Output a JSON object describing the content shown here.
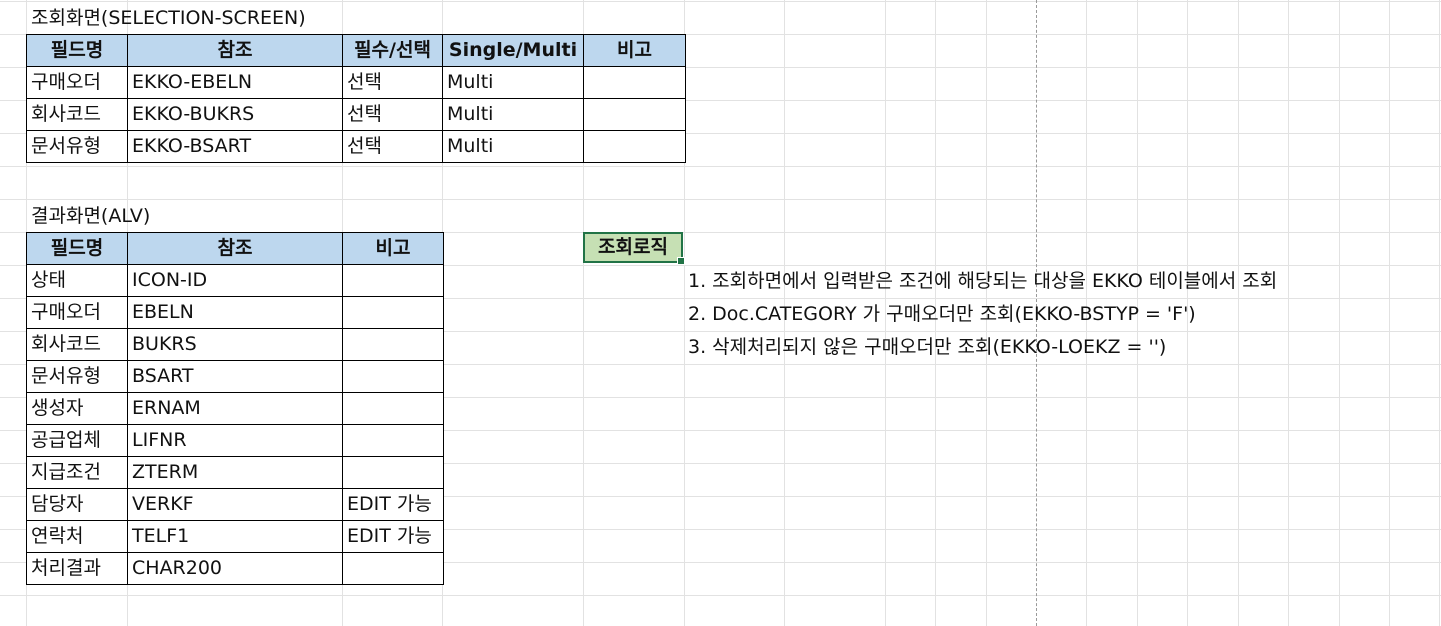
{
  "selection": {
    "title": "조회화면(SELECTION-SCREEN)",
    "headers": [
      "필드명",
      "참조",
      "필수/선택",
      "Single/Multi",
      "비고"
    ],
    "rows": [
      [
        "구매오더",
        "EKKO-EBELN",
        "선택",
        "Multi",
        ""
      ],
      [
        "회사코드",
        "EKKO-BUKRS",
        "선택",
        "Multi",
        ""
      ],
      [
        "문서유형",
        "EKKO-BSART",
        "선택",
        "Multi",
        ""
      ]
    ]
  },
  "alv": {
    "title": "결과화면(ALV)",
    "headers": [
      "필드명",
      "참조",
      "비고"
    ],
    "rows": [
      [
        "상태",
        "ICON-ID",
        ""
      ],
      [
        "구매오더",
        "EBELN",
        ""
      ],
      [
        "회사코드",
        "BUKRS",
        ""
      ],
      [
        "문서유형",
        "BSART",
        ""
      ],
      [
        "생성자",
        "ERNAM",
        ""
      ],
      [
        "공급업체",
        "LIFNR",
        ""
      ],
      [
        "지급조건",
        "ZTERM",
        ""
      ],
      [
        "담당자",
        "VERKF",
        "EDIT 가능"
      ],
      [
        "연락처",
        "TELF1",
        "EDIT 가능"
      ],
      [
        "처리결과",
        "CHAR200",
        ""
      ]
    ]
  },
  "logic": {
    "header": "조회로직",
    "lines": [
      "1. 조회하면에서 입력받은 조건에 해당되는 대상을 EKKO 테이블에서 조회",
      "2. Doc.CATEGORY 가 구매오더만 조회(EKKO-BSTYP = 'F')",
      "3. 삭제처리되지 않은 구매오더만 조회(EKKO-LOEKZ = '')"
    ]
  },
  "colors": {
    "header_fill": "#bdd7ee",
    "selected_cell_fill": "#c6e0b4",
    "selection_border": "#217346"
  }
}
